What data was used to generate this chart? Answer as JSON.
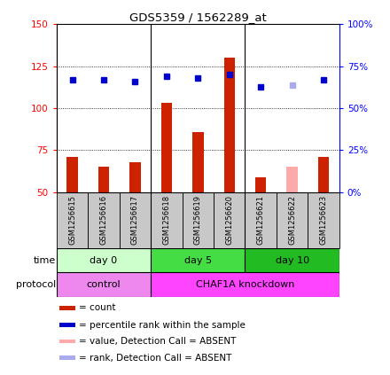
{
  "title": "GDS5359 / 1562289_at",
  "samples": [
    "GSM1256615",
    "GSM1256616",
    "GSM1256617",
    "GSM1256618",
    "GSM1256619",
    "GSM1256620",
    "GSM1256621",
    "GSM1256622",
    "GSM1256623"
  ],
  "bar_values": [
    71,
    65,
    68,
    103,
    86,
    130,
    59,
    65,
    71
  ],
  "bar_colors": [
    "#CC2200",
    "#CC2200",
    "#CC2200",
    "#CC2200",
    "#CC2200",
    "#CC2200",
    "#CC2200",
    "#FFAAAA",
    "#CC2200"
  ],
  "dot_values": [
    67,
    67,
    66,
    69,
    68,
    70,
    63,
    64,
    67
  ],
  "dot_colors": [
    "#0000CC",
    "#0000CC",
    "#0000CC",
    "#0000CC",
    "#0000CC",
    "#0000CC",
    "#0000CC",
    "#AAAAEE",
    "#0000CC"
  ],
  "ylim_left": [
    50,
    150
  ],
  "ylim_right": [
    0,
    100
  ],
  "yticks_left": [
    50,
    75,
    100,
    125,
    150
  ],
  "yticks_right": [
    0,
    25,
    50,
    75,
    100
  ],
  "ytick_labels_right": [
    "0%",
    "25%",
    "50%",
    "75%",
    "100%"
  ],
  "time_groups": [
    {
      "label": "day 0",
      "span": [
        0,
        3
      ],
      "color": "#CCFFCC"
    },
    {
      "label": "day 5",
      "span": [
        3,
        6
      ],
      "color": "#44DD44"
    },
    {
      "label": "day 10",
      "span": [
        6,
        9
      ],
      "color": "#22BB22"
    }
  ],
  "protocol_groups": [
    {
      "label": "control",
      "span": [
        0,
        3
      ],
      "color": "#EE88EE"
    },
    {
      "label": "CHAF1A knockdown",
      "span": [
        3,
        9
      ],
      "color": "#FF44FF"
    }
  ],
  "time_label": "time",
  "protocol_label": "protocol",
  "legend_items": [
    {
      "color": "#CC2200",
      "text": "count"
    },
    {
      "color": "#0000CC",
      "text": "percentile rank within the sample"
    },
    {
      "color": "#FFAAAA",
      "text": "value, Detection Call = ABSENT"
    },
    {
      "color": "#AAAAEE",
      "text": "rank, Detection Call = ABSENT"
    }
  ],
  "sample_bg": "#C8C8C8",
  "bar_width": 0.35,
  "dot_size": 5,
  "group_separators": [
    2.5,
    5.5
  ]
}
